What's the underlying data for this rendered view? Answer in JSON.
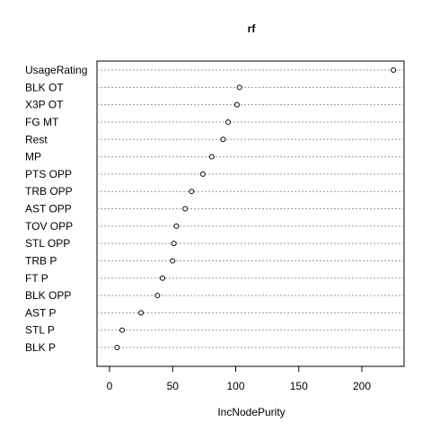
{
  "chart_data": {
    "type": "scatter",
    "title": "rf",
    "xlabel": "IncNodePurity",
    "ylabel": "",
    "xlim": [
      0,
      220
    ],
    "x_ticks": [
      0,
      50,
      100,
      150,
      200
    ],
    "grid": false,
    "categories": [
      "UsageRating",
      "BLK OT",
      "X3P OT",
      "FG MT",
      "Rest",
      "MP",
      "PTS OPP",
      "TRB OPP",
      "AST OPP",
      "TOV OPP",
      "STL OPP",
      "TRB P",
      "FT P",
      "BLK OPP",
      "AST P",
      "STL P",
      "BLK P"
    ],
    "values": [
      225,
      103,
      101,
      94,
      90,
      81,
      74,
      65,
      60,
      53,
      51,
      50,
      42,
      38,
      25,
      10,
      6
    ]
  }
}
